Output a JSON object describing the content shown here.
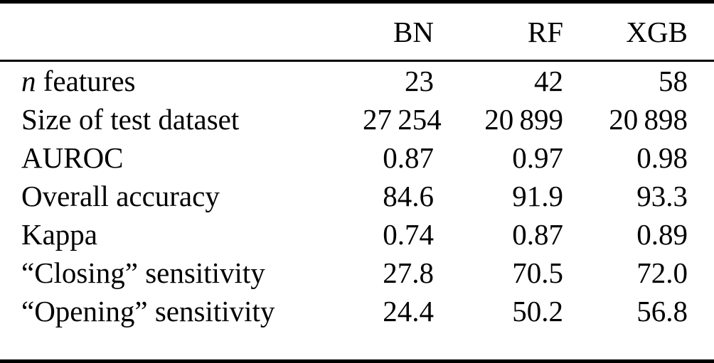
{
  "table": {
    "columns": [
      "BN",
      "RF",
      "XGB"
    ],
    "rows": [
      {
        "label_em": "n",
        "label_rest": " features",
        "values": [
          "23",
          "42",
          "58"
        ]
      },
      {
        "label": "Size of test dataset",
        "values": [
          "27 254",
          "20 899",
          "20 898"
        ]
      },
      {
        "label": "AUROC",
        "values": [
          "0.87",
          "0.97",
          "0.98"
        ]
      },
      {
        "label": "Overall accuracy",
        "values": [
          "84.6",
          "91.9",
          "93.3"
        ]
      },
      {
        "label": "Kappa",
        "values": [
          "0.74",
          "0.87",
          "0.89"
        ]
      },
      {
        "label": "“Closing” sensitivity",
        "values": [
          "27.8",
          "70.5",
          "72.0"
        ]
      },
      {
        "label": "“Opening” sensitivity",
        "values": [
          "24.4",
          "50.2",
          "56.8"
        ]
      }
    ],
    "colors": {
      "text": "#000000",
      "background": "#ffffff",
      "rule": "#000000"
    }
  }
}
